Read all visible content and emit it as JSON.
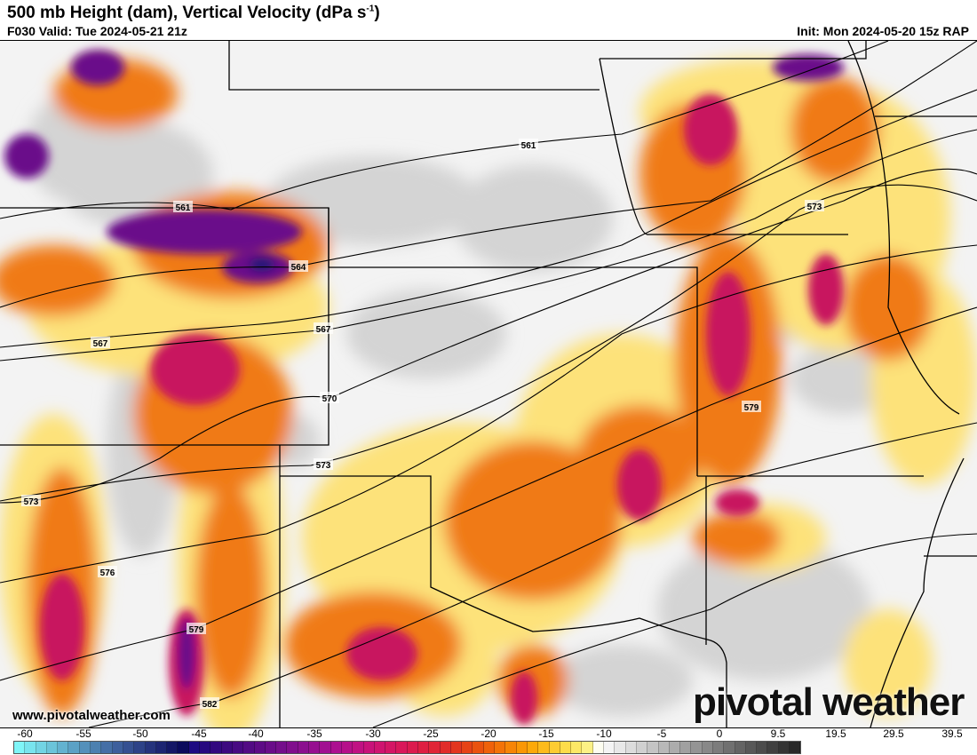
{
  "header": {
    "title": "500 mb Height (dam), Vertical Velocity (dPa s",
    "title_sup": "-1",
    "title_end": ")",
    "valid": "F030 Valid: Tue 2024-05-21 21z",
    "init": "Init: Mon 2024-05-20 15z RAP"
  },
  "watermark": {
    "site": "www.pivotalweather.com",
    "logo": "pivotal weather"
  },
  "colorbar": {
    "tick_labels": [
      "-60",
      "-55",
      "-50",
      "-45",
      "-40",
      "-35",
      "-30",
      "-25",
      "-20",
      "-15",
      "-10",
      "-5",
      "0",
      "9.5",
      "19.5",
      "29.5",
      "39.5"
    ],
    "colors": [
      "#7ff5f8",
      "#78e4ee",
      "#72d4e4",
      "#6bc4da",
      "#63b2d0",
      "#5ba1c5",
      "#5490bb",
      "#4c80b0",
      "#456fa6",
      "#3d5f9c",
      "#355091",
      "#2d4287",
      "#25337c",
      "#1d2572",
      "#141766",
      "#0a0a5c",
      "#1d0a82",
      "#27097f",
      "#32097f",
      "#3c097f",
      "#470a82",
      "#520b84",
      "#5d0b86",
      "#690c89",
      "#740e8b",
      "#800e8d",
      "#8b0f8f",
      "#960f90",
      "#a10f91",
      "#ac1090",
      "#b6108a",
      "#c01183",
      "#c8127a",
      "#cf1470",
      "#d41665",
      "#d9185a",
      "#dc1b4e",
      "#de1f42",
      "#e02536",
      "#e12c2a",
      "#e3361f",
      "#e64316",
      "#ea520f",
      "#ef620b",
      "#f37308",
      "#f78506",
      "#fa9705",
      "#fca90a",
      "#fdbb1c",
      "#fdcc32",
      "#fddc4a",
      "#fde866",
      "#fcf185",
      "#fdfdf0",
      "#f4f4f4",
      "#e8e8e8",
      "#dcdcdc",
      "#d0d0d0",
      "#c4c4c4",
      "#b8b8b8",
      "#acacac",
      "#a0a0a0",
      "#949494",
      "#888888",
      "#7c7c7c",
      "#707070",
      "#646464",
      "#585858",
      "#4c4c4c",
      "#404040",
      "#343434",
      "#282828"
    ]
  },
  "contours": {
    "labels": [
      "561",
      "561",
      "564",
      "567",
      "567",
      "570",
      "573",
      "573",
      "573",
      "576",
      "579",
      "579",
      "582"
    ]
  }
}
